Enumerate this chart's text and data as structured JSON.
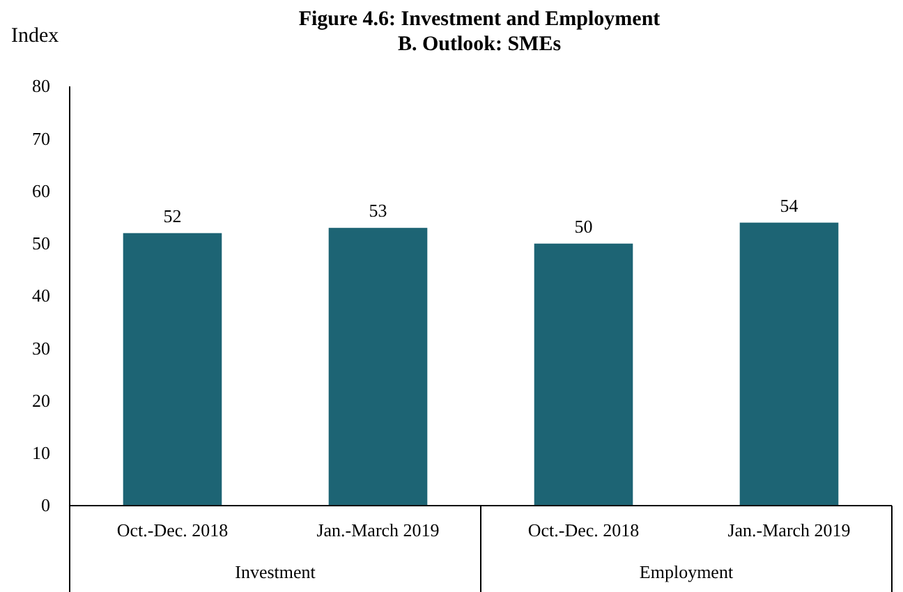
{
  "chart_data": {
    "type": "bar",
    "title": "Figure 4.6: Investment and Employment",
    "subtitle": "B. Outlook: SMEs",
    "ylabel": "Index",
    "categories": [
      "Oct.-Dec. 2018",
      "Jan.-March 2019",
      "Oct.-Dec. 2018",
      "Jan.-March 2019"
    ],
    "values": [
      52,
      53,
      50,
      54
    ],
    "color": "#1d6474",
    "ylim": [
      0,
      80
    ],
    "yticks": [
      0,
      10,
      20,
      30,
      40,
      50,
      60,
      70,
      80
    ],
    "grid": false,
    "data_labels": true,
    "annotations": [
      "Investment",
      "Employment"
    ]
  }
}
